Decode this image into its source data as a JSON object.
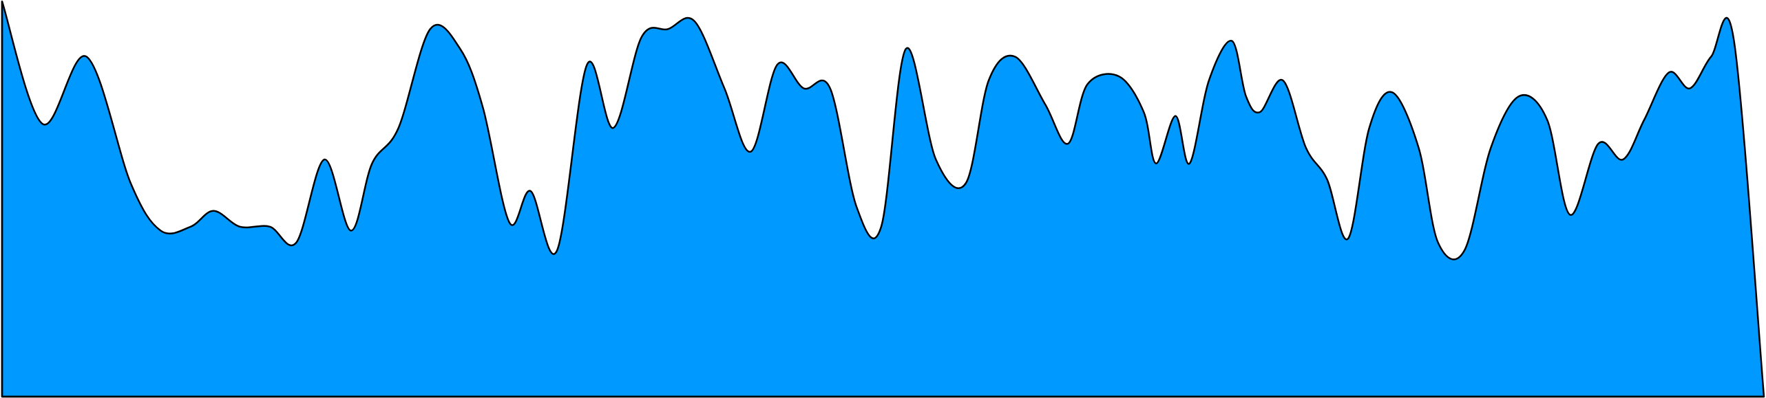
{
  "colors": {
    "fill": "#0099ff",
    "stroke": "#000000",
    "background": "#ffffff"
  },
  "chart_data": {
    "type": "area",
    "title": "",
    "xlabel": "",
    "ylabel": "",
    "grid": false,
    "legend": "none",
    "ylim": [
      0,
      100
    ],
    "series": [
      {
        "x": [
          0,
          2.3,
          4.8,
          7.3,
          9.0,
          10.7,
          12.0,
          13.5,
          15.2,
          16.7,
          18.3,
          19.8,
          21.0,
          22.5,
          24.3,
          26.0,
          27.3,
          28.8,
          30.0,
          31.5,
          33.2,
          34.7,
          36.3,
          37.8,
          39.3,
          41.0,
          42.5,
          44.0,
          45.5,
          47.0,
          48.5,
          49.9,
          51.3,
          53.0,
          54.7,
          56.0,
          57.5,
          59.2,
          60.5,
          61.6,
          63.4,
          64.8,
          65.5,
          66.6,
          67.4,
          68.5,
          69.8,
          70.6,
          71.4,
          72.7,
          74.0,
          75.2,
          76.4,
          77.6,
          78.9,
          80.4,
          81.5,
          83.0,
          84.5,
          86.1,
          87.7,
          89.0,
          90.6,
          92.0,
          93.2,
          94.6,
          95.8,
          97.0,
          98.3,
          100
        ],
        "y": [
          100,
          69,
          86,
          54,
          42,
          43,
          47,
          43,
          43,
          39,
          60,
          42,
          59,
          68,
          93,
          88,
          73,
          44,
          52,
          37,
          84,
          68,
          91,
          93,
          95,
          78,
          62,
          84,
          78,
          78,
          48,
          43,
          88,
          60,
          54,
          80,
          86,
          74,
          64,
          79,
          81,
          72,
          59,
          71,
          59,
          80,
          90,
          76,
          72,
          80,
          63,
          55,
          40,
          68,
          77,
          63,
          39,
          37,
          63,
          76,
          70,
          46,
          64,
          60,
          70,
          82,
          78,
          86,
          90,
          0
        ]
      }
    ]
  }
}
